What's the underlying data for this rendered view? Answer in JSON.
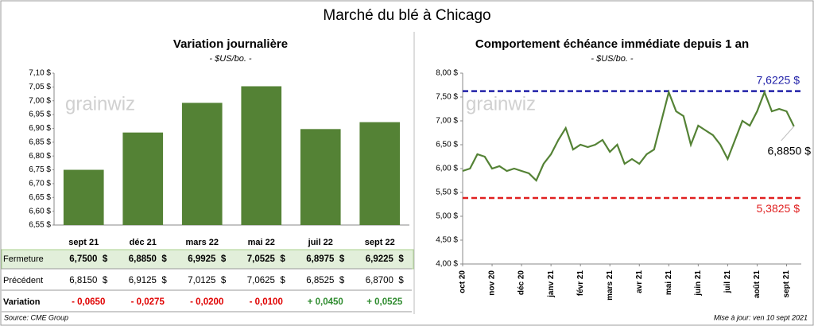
{
  "title": "Marché du blé à Chicago",
  "source": "Source: CME Group",
  "updated": "Mise à jour: ven 10 sept 2021",
  "watermark": "grainwiz",
  "chart_data": [
    {
      "type": "bar",
      "title": "Variation journalière",
      "subtitle": "- $US/bo. -",
      "categories": [
        "sept 21",
        "déc 21",
        "mars 22",
        "mai 22",
        "juil 22",
        "sept 22"
      ],
      "values": [
        6.75,
        6.885,
        6.9925,
        7.0525,
        6.8975,
        6.9225
      ],
      "value_labels": [
        "6,7500  $",
        "6,8850  $",
        "6,9925  $",
        "7,0525  $",
        "6,8975  $",
        "6,9225  $"
      ],
      "color": "#548235",
      "ylim": [
        6.55,
        7.1
      ],
      "yticks": [
        {
          "value": 6.55,
          "label": "6,55 $"
        },
        {
          "value": 6.6,
          "label": "6,60 $"
        },
        {
          "value": 6.65,
          "label": "6,65 $"
        },
        {
          "value": 6.7,
          "label": "6,70 $"
        },
        {
          "value": 6.75,
          "label": "6,75 $"
        },
        {
          "value": 6.8,
          "label": "6,80 $"
        },
        {
          "value": 6.85,
          "label": "6,85 $"
        },
        {
          "value": 6.9,
          "label": "6,90 $"
        },
        {
          "value": 6.95,
          "label": "6,95 $"
        },
        {
          "value": 7.0,
          "label": "7,00 $"
        },
        {
          "value": 7.05,
          "label": "7,05 $"
        },
        {
          "value": 7.1,
          "label": "7,10 $"
        }
      ],
      "row_labels": [
        "Fermeture",
        "Précédent",
        "Variation"
      ],
      "previous_labels": [
        "6,8150  $",
        "6,9125  $",
        "7,0125  $",
        "7,0625  $",
        "6,8525  $",
        "6,8700  $"
      ],
      "change_labels": [
        "- 0,0650",
        "- 0,0275",
        "- 0,0200",
        "- 0,0100",
        "+ 0,0450",
        "+ 0,0525"
      ]
    },
    {
      "type": "line",
      "title": "Comportement  échéance immédiate depuis 1 an",
      "subtitle": "- $US/bo. -",
      "x": [
        0,
        1,
        2,
        3,
        4,
        5,
        6,
        7,
        8,
        9,
        10,
        11,
        12,
        13,
        14,
        15,
        16,
        17,
        18,
        19,
        20,
        21,
        22,
        23,
        24,
        25,
        26,
        27,
        28,
        29,
        30,
        31,
        32,
        33,
        34,
        35,
        36,
        37,
        38,
        39,
        40,
        41,
        42,
        43,
        44,
        45
      ],
      "series": [
        {
          "name": "Échéance immédiate",
          "color": "#548235",
          "values": [
            5.95,
            6.0,
            6.3,
            6.25,
            6.0,
            6.05,
            5.95,
            6.0,
            5.95,
            5.9,
            5.75,
            6.1,
            6.3,
            6.6,
            6.85,
            6.4,
            6.5,
            6.45,
            6.5,
            6.6,
            6.35,
            6.5,
            6.1,
            6.2,
            6.1,
            6.3,
            6.4,
            7.0,
            7.6,
            7.2,
            7.1,
            6.5,
            6.9,
            6.8,
            6.7,
            6.5,
            6.2,
            6.6,
            7.0,
            6.9,
            7.2,
            7.6,
            7.2,
            7.25,
            7.2,
            6.885
          ]
        }
      ],
      "last_label": "6,8850 $",
      "hlines": [
        {
          "value": 7.6225,
          "label": "7,6225 $",
          "color": "#2020a8"
        },
        {
          "value": 5.3825,
          "label": "5,3825 $",
          "color": "#e02020"
        }
      ],
      "xlim": [
        0,
        46
      ],
      "xticks": [
        {
          "value": 0,
          "label": "oct 20"
        },
        {
          "value": 4,
          "label": "nov 20"
        },
        {
          "value": 8,
          "label": "déc 20"
        },
        {
          "value": 12,
          "label": "janv 21"
        },
        {
          "value": 16,
          "label": "févr 21"
        },
        {
          "value": 20,
          "label": "mars 21"
        },
        {
          "value": 24,
          "label": "avr 21"
        },
        {
          "value": 28,
          "label": "mai 21"
        },
        {
          "value": 32,
          "label": "juin 21"
        },
        {
          "value": 36,
          "label": "juil 21"
        },
        {
          "value": 40,
          "label": "août 21"
        },
        {
          "value": 44,
          "label": "sept 21"
        }
      ],
      "ylim": [
        4.0,
        8.0
      ],
      "yticks": [
        {
          "value": 4.0,
          "label": "4,00 $"
        },
        {
          "value": 4.5,
          "label": "4,50 $"
        },
        {
          "value": 5.0,
          "label": "5,00 $"
        },
        {
          "value": 5.5,
          "label": "5,50 $"
        },
        {
          "value": 6.0,
          "label": "6,00 $"
        },
        {
          "value": 6.5,
          "label": "6,50 $"
        },
        {
          "value": 7.0,
          "label": "7,00 $"
        },
        {
          "value": 7.5,
          "label": "7,50 $"
        },
        {
          "value": 8.0,
          "label": "8,00 $"
        }
      ],
      "grid": false
    }
  ]
}
